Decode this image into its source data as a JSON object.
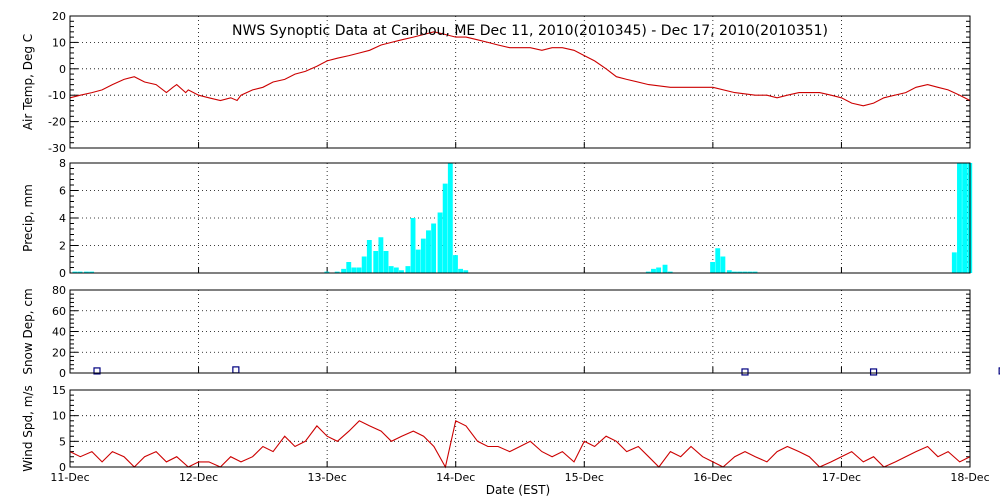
{
  "chart_data": [
    {
      "type": "line",
      "title": "NWS Synoptic Data at Caribou, ME   Dec 11, 2010(2010345) - Dec 17, 2010(2010351)",
      "ylabel": "Air Temp, Deg C",
      "ylim": [
        -30,
        20
      ],
      "yticks": [
        "20",
        "10",
        "0",
        "-10",
        "-20",
        "-30"
      ],
      "xlim": [
        0,
        7
      ],
      "line_color": "#cc0000",
      "grid": true,
      "series": [
        {
          "x": [
            0,
            0.08,
            0.17,
            0.25,
            0.33,
            0.42,
            0.5,
            0.58,
            0.67,
            0.75,
            0.8,
            0.83,
            0.9,
            0.92,
            1,
            1.08,
            1.17,
            1.25,
            1.3,
            1.33,
            1.42,
            1.5,
            1.58,
            1.67,
            1.75,
            1.83,
            1.92,
            2,
            2.08,
            2.17,
            2.25,
            2.33,
            2.42,
            2.5,
            2.58,
            2.67,
            2.75,
            2.83,
            2.92,
            3,
            3.08,
            3.17,
            3.25,
            3.33,
            3.42,
            3.5,
            3.58,
            3.67,
            3.75,
            3.83,
            3.92,
            4,
            4.08,
            4.17,
            4.25,
            4.33,
            4.5,
            4.67,
            4.83,
            5,
            5.17,
            5.33,
            5.42,
            5.5,
            5.58,
            5.67,
            5.83,
            5.92,
            6,
            6.08,
            6.17,
            6.25,
            6.33,
            6.5,
            6.58,
            6.67,
            6.75,
            6.83,
            6.92,
            7
          ],
          "values": [
            -11,
            -10,
            -9,
            -8,
            -6,
            -4,
            -3,
            -5,
            -6,
            -9,
            -7,
            -6,
            -9,
            -8,
            -10,
            -11,
            -12,
            -11,
            -12,
            -10,
            -8,
            -7,
            -5,
            -4,
            -2,
            -1,
            1,
            3,
            4,
            5,
            6,
            7,
            9,
            10,
            11,
            12,
            13,
            14,
            13,
            12,
            12,
            11,
            10,
            9,
            8,
            8,
            8,
            7,
            8,
            8,
            7,
            5,
            3,
            0,
            -3,
            -4,
            -6,
            -7,
            -7,
            -7,
            -9,
            -10,
            -10,
            -11,
            -10,
            -9,
            -9,
            -10,
            -11,
            -13,
            -14,
            -13,
            -11,
            -9,
            -7,
            -6,
            -7,
            -8,
            -10,
            -12
          ]
        }
      ]
    },
    {
      "type": "bar",
      "ylabel": "Precip, mm",
      "ylim": [
        0,
        8
      ],
      "yticks": [
        "8",
        "6",
        "4",
        "2",
        "0"
      ],
      "xlim": [
        0,
        7
      ],
      "bar_color": "#00ffff",
      "bar_width_days": 0.0417,
      "grid": true,
      "x": [
        0.04,
        0.08,
        0.13,
        0.17,
        2.0,
        2.08,
        2.13,
        2.17,
        2.21,
        2.25,
        2.29,
        2.33,
        2.38,
        2.42,
        2.46,
        2.5,
        2.54,
        2.58,
        2.63,
        2.67,
        2.71,
        2.75,
        2.79,
        2.83,
        2.88,
        2.92,
        2.96,
        3.0,
        3.04,
        3.08,
        4.5,
        4.54,
        4.58,
        4.63,
        4.67,
        5.0,
        5.04,
        5.08,
        5.13,
        5.17,
        5.21,
        5.25,
        5.29,
        5.33,
        6.88,
        6.92,
        6.96,
        7.0
      ],
      "values": [
        0.1,
        0.1,
        0.1,
        0.1,
        0.1,
        0.1,
        0.3,
        0.8,
        0.4,
        0.4,
        1.2,
        2.4,
        1.6,
        2.6,
        1.6,
        0.5,
        0.4,
        0.2,
        0.5,
        4.0,
        1.7,
        2.5,
        3.1,
        3.6,
        4.4,
        6.5,
        8.9,
        1.3,
        0.3,
        0.2,
        0.1,
        0.3,
        0.4,
        0.6,
        0.1,
        0.8,
        1.8,
        1.2,
        0.2,
        0.1,
        0.1,
        0.1,
        0.1,
        0.1,
        1.5,
        9.0,
        8.0,
        9.0
      ]
    },
    {
      "type": "scatter",
      "ylabel": "Snow Dep, cm",
      "ylim": [
        0,
        80
      ],
      "yticks": [
        "80",
        "60",
        "40",
        "20",
        "0"
      ],
      "xlim": [
        0,
        7
      ],
      "marker_color": "#000080",
      "grid": true,
      "x": [
        0.21,
        1.29,
        5.25,
        6.25,
        7.25
      ],
      "values": [
        2,
        3,
        1,
        1,
        2
      ]
    },
    {
      "type": "line",
      "ylabel": "Wind Spd, m/s",
      "ylim": [
        0,
        15
      ],
      "yticks": [
        "15",
        "10",
        "5",
        "0"
      ],
      "xlim": [
        0,
        7
      ],
      "xlabel": "Date (EST)",
      "xticks": [
        "11-Dec",
        "12-Dec",
        "13-Dec",
        "14-Dec",
        "15-Dec",
        "16-Dec",
        "17-Dec",
        "18-Dec"
      ],
      "line_color": "#cc0000",
      "grid": true,
      "series": [
        {
          "x": [
            0,
            0.08,
            0.17,
            0.25,
            0.33,
            0.42,
            0.5,
            0.58,
            0.67,
            0.75,
            0.83,
            0.92,
            1,
            1.08,
            1.17,
            1.25,
            1.33,
            1.42,
            1.5,
            1.58,
            1.67,
            1.75,
            1.83,
            1.92,
            2,
            2.08,
            2.17,
            2.25,
            2.33,
            2.42,
            2.5,
            2.58,
            2.67,
            2.75,
            2.83,
            2.92,
            3,
            3.08,
            3.17,
            3.25,
            3.33,
            3.42,
            3.5,
            3.58,
            3.67,
            3.75,
            3.83,
            3.92,
            4,
            4.08,
            4.17,
            4.25,
            4.33,
            4.42,
            4.5,
            4.58,
            4.67,
            4.75,
            4.83,
            4.92,
            5,
            5.08,
            5.17,
            5.25,
            5.33,
            5.42,
            5.5,
            5.58,
            5.67,
            5.75,
            5.83,
            5.92,
            6,
            6.08,
            6.17,
            6.25,
            6.33,
            6.42,
            6.5,
            6.58,
            6.67,
            6.75,
            6.83,
            6.92,
            7
          ],
          "values": [
            3,
            2,
            3,
            1,
            3,
            2,
            0,
            2,
            3,
            1,
            2,
            0,
            1,
            1,
            0,
            2,
            1,
            2,
            4,
            3,
            6,
            4,
            5,
            8,
            6,
            5,
            7,
            9,
            8,
            7,
            5,
            6,
            7,
            6,
            4,
            0,
            9,
            8,
            5,
            4,
            4,
            3,
            4,
            5,
            3,
            2,
            3,
            1,
            5,
            4,
            6,
            5,
            3,
            4,
            2,
            0,
            3,
            2,
            4,
            2,
            1,
            0,
            2,
            3,
            2,
            1,
            3,
            4,
            3,
            2,
            0,
            1,
            2,
            3,
            1,
            2,
            0,
            1,
            2,
            3,
            4,
            2,
            3,
            1,
            2
          ]
        }
      ]
    }
  ]
}
